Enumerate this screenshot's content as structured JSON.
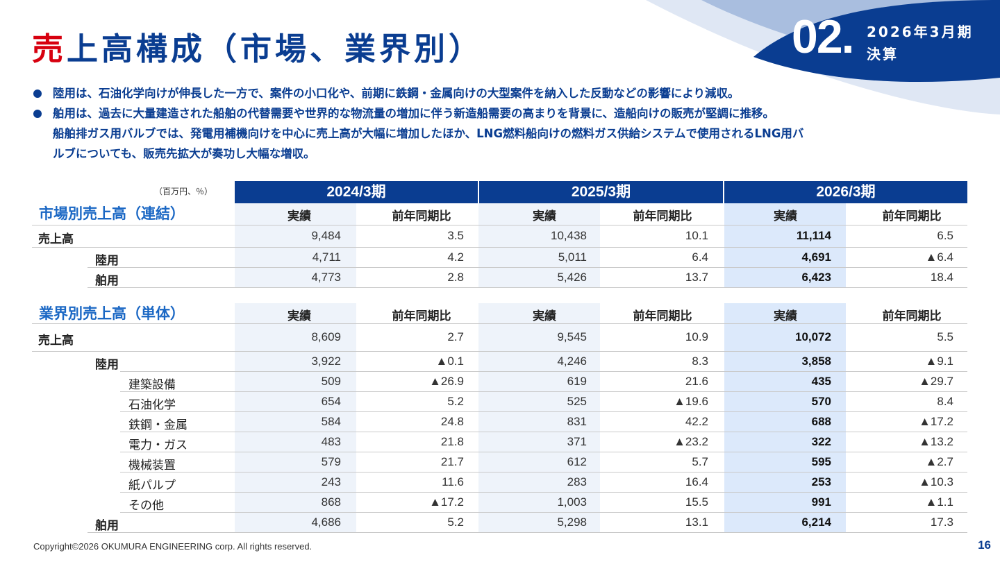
{
  "header": {
    "title_accent": "売",
    "title_rest": "上高構成（市場、業界別）",
    "section_number": "02.",
    "period_line1": "2026年3月期",
    "period_line2": "決算"
  },
  "bullets": [
    {
      "lines": [
        "陸用は、石油化学向けが伸長した一方で、案件の小口化や、前期に鉄鋼・金属向けの大型案件を納入した反動などの影響により減収。"
      ]
    },
    {
      "lines": [
        "舶用は、過去に大量建造された船舶の代替需要や世界的な物流量の増加に伴う新造船需要の高まりを背景に、造船向けの販売が堅調に推移。",
        "船舶排ガス用バルブでは、発電用補機向けを中心に売上高が大幅に増加したほか、LNG燃料船向けの燃料ガス供給システムで使用されるLNG用バ",
        "ルブについても、販売先拡大が奏功し大幅な増収。"
      ]
    }
  ],
  "table": {
    "unit": "（百万円、％）",
    "years": [
      "2024/3期",
      "2025/3期",
      "2026/3期"
    ],
    "col_headers": [
      "実績",
      "前年同期比",
      "実績",
      "前年同期比",
      "実績",
      "前年同期比"
    ],
    "market_section": {
      "title": "市場別売上高（連結）",
      "rows": [
        {
          "label": "売上高",
          "level": 0,
          "values": [
            "9,484",
            "3.5",
            "10,438",
            "10.1",
            "11,114",
            "6.5"
          ]
        },
        {
          "label": "陸用",
          "level": 1,
          "values": [
            "4,711",
            "4.2",
            "5,011",
            "6.4",
            "4,691",
            "▲6.4"
          ]
        },
        {
          "label": "舶用",
          "level": 1,
          "values": [
            "4,773",
            "2.8",
            "5,426",
            "13.7",
            "6,423",
            "18.4"
          ]
        }
      ]
    },
    "industry_section": {
      "title": "業界別売上高（単体）",
      "rows": [
        {
          "label": "売上高",
          "level": 0,
          "values": [
            "8,609",
            "2.7",
            "9,545",
            "10.9",
            "10,072",
            "5.5"
          ]
        },
        {
          "label": "陸用",
          "level": 1,
          "values": [
            "3,922",
            "▲0.1",
            "4,246",
            "8.3",
            "3,858",
            "▲9.1"
          ]
        },
        {
          "label": "建築設備",
          "level": 2,
          "values": [
            "509",
            "▲26.9",
            "619",
            "21.6",
            "435",
            "▲29.7"
          ]
        },
        {
          "label": "石油化学",
          "level": 2,
          "values": [
            "654",
            "5.2",
            "525",
            "▲19.6",
            "570",
            "8.4"
          ]
        },
        {
          "label": "鉄鋼・金属",
          "level": 2,
          "values": [
            "584",
            "24.8",
            "831",
            "42.2",
            "688",
            "▲17.2"
          ]
        },
        {
          "label": "電力・ガス",
          "level": 2,
          "values": [
            "483",
            "21.8",
            "371",
            "▲23.2",
            "322",
            "▲13.2"
          ]
        },
        {
          "label": "機械装置",
          "level": 2,
          "values": [
            "579",
            "21.7",
            "612",
            "5.7",
            "595",
            "▲2.7"
          ]
        },
        {
          "label": "紙パルプ",
          "level": 2,
          "values": [
            "243",
            "11.6",
            "283",
            "16.4",
            "253",
            "▲10.3"
          ]
        },
        {
          "label": "その他",
          "level": 2,
          "values": [
            "868",
            "▲17.2",
            "1,003",
            "15.5",
            "991",
            "▲1.1"
          ]
        },
        {
          "label": "舶用",
          "level": 1,
          "values": [
            "4,686",
            "5.2",
            "5,298",
            "13.1",
            "6,214",
            "17.3"
          ]
        }
      ]
    }
  },
  "footer": {
    "copyright": "Copyright©2026 OKUMURA ENGINEERING corp. All rights reserved.",
    "page_number": "16"
  },
  "colors": {
    "navy": "#0a3d91",
    "accent_red": "#d7000f",
    "section_blue": "#1a67c4",
    "shade_light": "#eef3fa",
    "shade_current": "#dce9fb"
  }
}
